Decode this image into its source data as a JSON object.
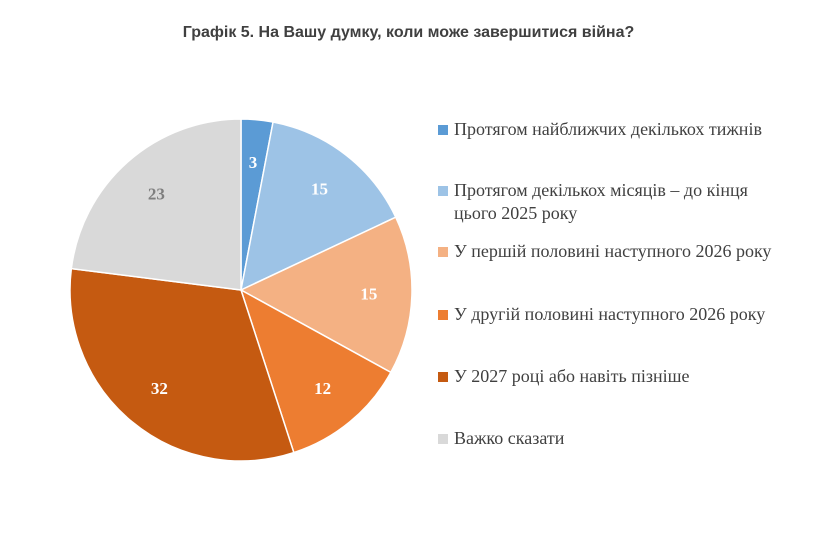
{
  "chart_data": {
    "type": "pie",
    "title": "Графік 5. На Вашу думку, коли може завершитися війна?",
    "categories": [
      "Протягом найближчих декількох тижнів",
      "Протягом декількох місяців – до кінця цього 2025 року",
      "У першій половині наступного 2026 року",
      "У другій половині наступного 2026 року",
      "У 2027 році або навіть пізніше",
      "Важко сказати"
    ],
    "values": [
      3,
      15,
      15,
      12,
      32,
      23
    ],
    "colors": [
      "#5B9BD5",
      "#9DC3E6",
      "#F4B183",
      "#ED7D31",
      "#C55A11",
      "#D9D9D9"
    ],
    "label_colors": [
      "#ffffff",
      "#ffffff",
      "#ffffff",
      "#ffffff",
      "#ffffff",
      "#7f7f7f"
    ],
    "legend_position": "right",
    "start_angle": "12 o'clock",
    "direction": "clockwise"
  }
}
